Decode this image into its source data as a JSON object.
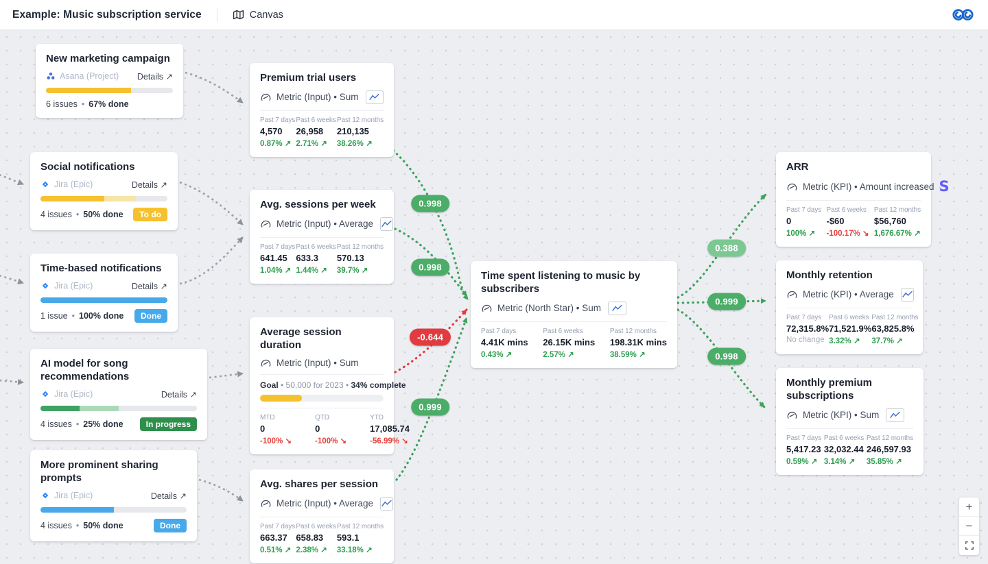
{
  "ui": {
    "dot": "•"
  },
  "header": {
    "title": "Example: Music subscription service",
    "nav_label": "Canvas"
  },
  "projects": [
    {
      "title": "New marketing campaign",
      "source": "Asana (Project)",
      "details_label": "Details ↗",
      "progress": [
        {
          "pct": 67,
          "color": "#F6C12E"
        }
      ],
      "issues": "6 issues",
      "done": "67% done",
      "status": null
    },
    {
      "title": "Social notifications",
      "source": "Jira (Epic)",
      "details_label": "Details ↗",
      "progress": [
        {
          "pct": 50,
          "color": "#F6C12E"
        },
        {
          "pct": 25,
          "color": "#F7E5A8"
        }
      ],
      "issues": "4 issues",
      "done": "50% done",
      "status": {
        "label": "To do",
        "color": "#F6C12E"
      }
    },
    {
      "title": "Time-based notifications",
      "source": "Jira (Epic)",
      "details_label": "Details ↗",
      "progress": [
        {
          "pct": 100,
          "color": "#47A9E9"
        }
      ],
      "issues": "1 issue",
      "done": "100% done",
      "status": {
        "label": "Done",
        "color": "#47A9E9"
      }
    },
    {
      "title": "AI model for song recommendations",
      "source": "Jira (Epic)",
      "details_label": "Details ↗",
      "progress": [
        {
          "pct": 25,
          "color": "#3FA264"
        },
        {
          "pct": 25,
          "color": "#ABD9B8"
        }
      ],
      "issues": "4 issues",
      "done": "25% done",
      "status": {
        "label": "In progress",
        "color": "#2E8F4C"
      }
    },
    {
      "title": "More prominent sharing prompts",
      "source": "Jira (Epic)",
      "details_label": "Details ↗",
      "progress": [
        {
          "pct": 50,
          "color": "#47A9E9"
        }
      ],
      "issues": "4 issues",
      "done": "50% done",
      "status": {
        "label": "Done",
        "color": "#47A9E9"
      }
    }
  ],
  "metrics": [
    {
      "title": "Premium trial users",
      "meta": "Metric (Input) • Sum",
      "stats": [
        {
          "label": "Past 7 days",
          "value": "4,570",
          "change": "0.87% ↗",
          "dir": "up"
        },
        {
          "label": "Past 6 weeks",
          "value": "26,958",
          "change": "2.71% ↗",
          "dir": "up"
        },
        {
          "label": "Past 12 months",
          "value": "210,135",
          "change": "38.26% ↗",
          "dir": "up"
        }
      ]
    },
    {
      "title": "Avg. sessions per week",
      "meta": "Metric (Input) • Average",
      "stats": [
        {
          "label": "Past 7 days",
          "value": "641.45",
          "change": "1.04% ↗",
          "dir": "up"
        },
        {
          "label": "Past 6 weeks",
          "value": "633.3",
          "change": "1.44% ↗",
          "dir": "up"
        },
        {
          "label": "Past 12 months",
          "value": "570.13",
          "change": "39.7% ↗",
          "dir": "up"
        }
      ]
    },
    {
      "title": "Average session duration",
      "meta": "Metric (Input) • Sum",
      "goal_label": "Goal",
      "goal_mid": "• 50,000 for 2023 •",
      "goal_complete": "34% complete",
      "goal_progress": [
        {
          "pct": 34,
          "color": "#F6C12E"
        }
      ],
      "stats": [
        {
          "label": "MTD",
          "value": "0",
          "change": "-100% ↘",
          "dir": "down"
        },
        {
          "label": "QTD",
          "value": "0",
          "change": "-100% ↘",
          "dir": "down"
        },
        {
          "label": "YTD",
          "value": "17,085.74",
          "change": "-56.99% ↘",
          "dir": "down"
        }
      ]
    },
    {
      "title": "Avg. shares per session",
      "meta": "Metric (Input) • Average",
      "stats": [
        {
          "label": "Past 7 days",
          "value": "663.37",
          "change": "0.51% ↗",
          "dir": "up"
        },
        {
          "label": "Past 6 weeks",
          "value": "658.83",
          "change": "2.38% ↗",
          "dir": "up"
        },
        {
          "label": "Past 12 months",
          "value": "593.1",
          "change": "33.18% ↗",
          "dir": "up"
        }
      ]
    }
  ],
  "center": {
    "title": "Time spent listening to music by subscribers",
    "meta": "Metric (North Star) • Sum",
    "stats": [
      {
        "label": "Past 7 days",
        "value": "4.41K mins",
        "change": "0.43% ↗",
        "dir": "up"
      },
      {
        "label": "Past 6 weeks",
        "value": "26.15K mins",
        "change": "2.57% ↗",
        "dir": "up"
      },
      {
        "label": "Past 12 months",
        "value": "198.31K mins",
        "change": "38.59% ↗",
        "dir": "up"
      }
    ]
  },
  "kpis": [
    {
      "title": "ARR",
      "meta": "Metric (KPI) • Amount increased",
      "stats": [
        {
          "label": "Past 7 days",
          "value": "0",
          "change": "100% ↗",
          "dir": "up"
        },
        {
          "label": "Past 6 weeks",
          "value": "-$60",
          "change": "-100.17% ↘",
          "dir": "down"
        },
        {
          "label": "Past 12 months",
          "value": "$56,760",
          "change": "1,676.67% ↗",
          "dir": "up"
        }
      ]
    },
    {
      "title": "Monthly retention",
      "meta": "Metric (KPI) • Average",
      "stats": [
        {
          "label": "Past 7 days",
          "value": "72,315.8%",
          "change": "No change",
          "dir": "none"
        },
        {
          "label": "Past 6 weeks",
          "value": "71,521.9%",
          "change": "3.32% ↗",
          "dir": "up"
        },
        {
          "label": "Past 12 months",
          "value": "63,825.8%",
          "change": "37.7% ↗",
          "dir": "up"
        }
      ]
    },
    {
      "title": "Monthly premium subscriptions",
      "meta": "Metric (KPI) • Sum",
      "stats": [
        {
          "label": "Past 7 days",
          "value": "5,417.23",
          "change": "0.59% ↗",
          "dir": "up"
        },
        {
          "label": "Past 6 weeks",
          "value": "32,032.44",
          "change": "3.14% ↗",
          "dir": "up"
        },
        {
          "label": "Past 12 months",
          "value": "246,597.93",
          "change": "35.85% ↗",
          "dir": "up"
        }
      ]
    }
  ],
  "correlations": [
    {
      "value": "0.998",
      "tone": "green"
    },
    {
      "value": "0.998",
      "tone": "green"
    },
    {
      "value": "-0.644",
      "tone": "red"
    },
    {
      "value": "0.999",
      "tone": "green"
    },
    {
      "value": "0.388",
      "tone": "light"
    },
    {
      "value": "0.999",
      "tone": "green"
    },
    {
      "value": "0.998",
      "tone": "green"
    }
  ],
  "zoom_controls": {
    "zoom_in": "+",
    "zoom_out": "−"
  },
  "colors": {
    "positive": "#2E9E4E",
    "negative": "#E2403C",
    "corr_green": "#4BAD68",
    "corr_light": "#7CC893",
    "corr_red": "#E23B3F",
    "wire_gray": "#9CA1A8",
    "jira_blue": "#2684FF",
    "asana_blue": "#4974D6",
    "stripe_purple": "#635BFF",
    "brand_blue": "#1C66CB"
  }
}
